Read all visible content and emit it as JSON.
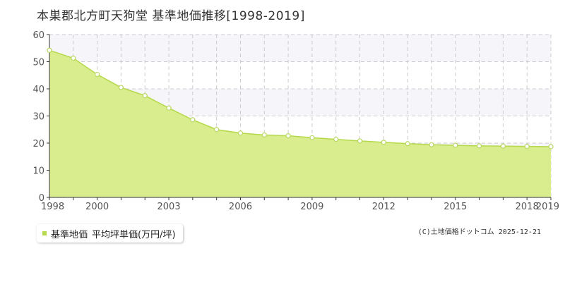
{
  "title": "本巣郡北方町天狗堂 基準地価推移[1998-2019]",
  "legend": {
    "label": "基準地価",
    "unit": "平均坪単価(万円/坪)"
  },
  "copyright": "(C)土地価格ドットコム 2025-12-21",
  "colors": {
    "area_fill": "#d9ec8e",
    "line": "#b5d94a",
    "marker_stroke": "#b8d860",
    "grid": "#cccccc",
    "band": "#f6f5f9",
    "axis_text": "#555555",
    "legend_swatch": "#b5d94a"
  },
  "chart_data": {
    "type": "area",
    "series": [
      {
        "name": "基準地価",
        "x": [
          1998,
          1999,
          2000,
          2001,
          2002,
          2003,
          2004,
          2005,
          2006,
          2007,
          2008,
          2009,
          2010,
          2011,
          2012,
          2013,
          2014,
          2015,
          2016,
          2017,
          2018,
          2019
        ],
        "values": [
          54.2,
          51.3,
          45.3,
          40.5,
          37.5,
          32.9,
          28.6,
          25.0,
          23.7,
          23.0,
          22.7,
          22.0,
          21.4,
          20.8,
          20.3,
          19.8,
          19.4,
          19.2,
          19.0,
          18.9,
          18.8,
          18.7
        ]
      }
    ],
    "ylim": [
      0,
      60
    ],
    "yticks": [
      0,
      10,
      20,
      30,
      40,
      50,
      60
    ],
    "xlim": [
      1998,
      2019
    ],
    "xticks": [
      1998,
      2000,
      2003,
      2006,
      2009,
      2012,
      2015,
      2018,
      2019
    ],
    "grid": true,
    "legend_position": "bottom-left"
  }
}
